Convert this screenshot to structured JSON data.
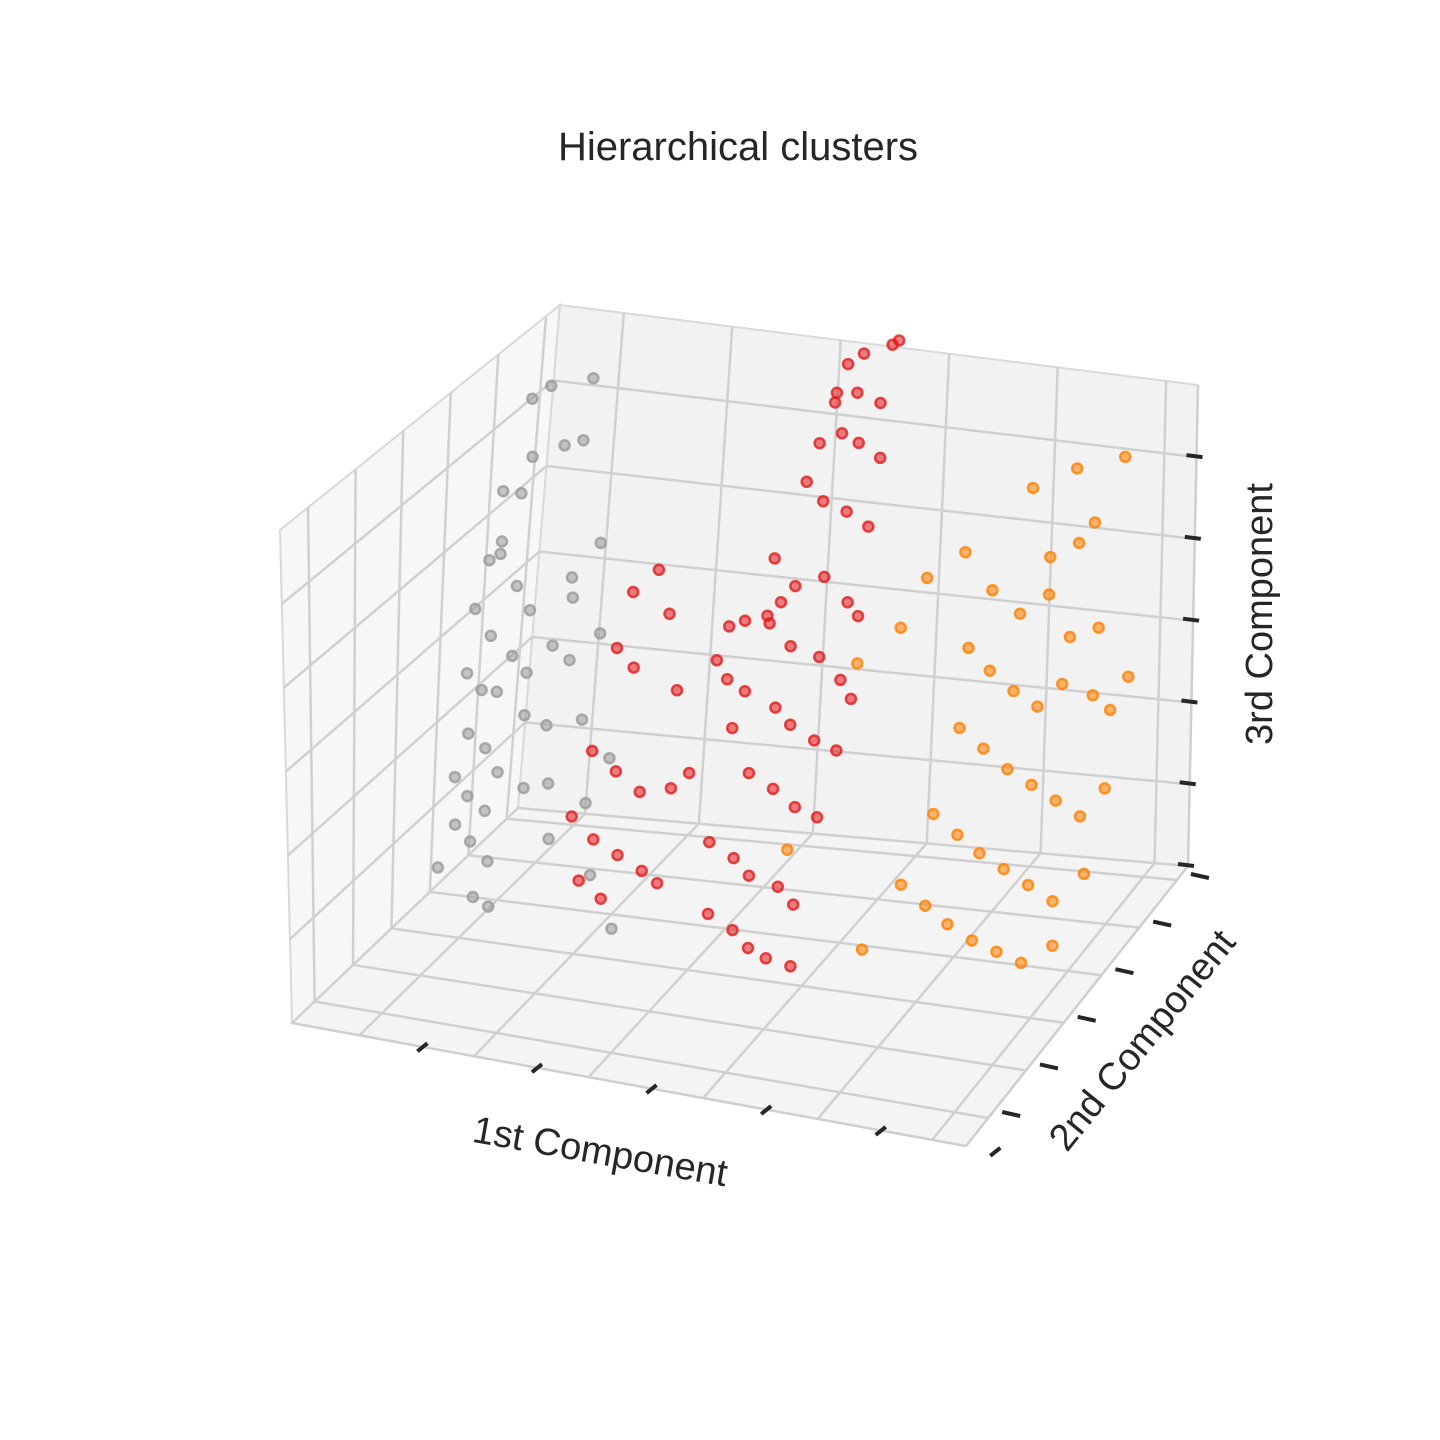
{
  "chart_data": {
    "type": "scatter3d",
    "title": "Hierarchical clusters",
    "xlabel": "1st Component",
    "ylabel": "2nd Component",
    "zlabel": "3rd Component",
    "xlim": [
      0,
      10
    ],
    "ylim": [
      0,
      10
    ],
    "zlim": [
      0,
      10
    ],
    "grid": true,
    "series": [
      {
        "color": "#999999",
        "points": [
          [
            0.4,
            8.2,
            9.0
          ],
          [
            0.6,
            8.4,
            9.2
          ],
          [
            1.2,
            8.5,
            9.4
          ],
          [
            0.5,
            8.1,
            7.9
          ],
          [
            0.9,
            8.3,
            8.1
          ],
          [
            1.3,
            8.0,
            8.4
          ],
          [
            0.2,
            7.8,
            7.3
          ],
          [
            0.4,
            8.0,
            7.2
          ],
          [
            0.3,
            7.6,
            6.4
          ],
          [
            0.2,
            7.4,
            6.1
          ],
          [
            0.4,
            7.3,
            6.3
          ],
          [
            0.6,
            7.5,
            5.6
          ],
          [
            0.1,
            7.2,
            5.2
          ],
          [
            1.0,
            7.0,
            5.4
          ],
          [
            1.6,
            7.1,
            5.7
          ],
          [
            2.0,
            7.2,
            5.0
          ],
          [
            1.4,
            6.9,
            4.8
          ],
          [
            1.7,
            6.8,
            4.6
          ],
          [
            0.8,
            6.9,
            4.5
          ],
          [
            1.1,
            6.7,
            4.3
          ],
          [
            0.1,
            7.0,
            4.0
          ],
          [
            0.4,
            6.8,
            3.8
          ],
          [
            0.7,
            6.6,
            3.9
          ],
          [
            1.2,
            6.4,
            3.6
          ],
          [
            1.5,
            6.5,
            3.4
          ],
          [
            2.1,
            6.3,
            3.7
          ],
          [
            0.3,
            6.6,
            3.0
          ],
          [
            0.6,
            6.5,
            2.8
          ],
          [
            0.9,
            6.2,
            2.5
          ],
          [
            0.2,
            6.4,
            2.2
          ],
          [
            0.5,
            6.1,
            2.0
          ],
          [
            0.8,
            6.0,
            1.8
          ],
          [
            0.4,
            5.9,
            1.5
          ],
          [
            0.7,
            5.7,
            1.3
          ],
          [
            1.0,
            5.6,
            1.0
          ],
          [
            0.3,
            5.5,
            0.8
          ],
          [
            1.4,
            5.9,
            2.4
          ],
          [
            1.8,
            5.8,
            2.6
          ],
          [
            2.3,
            6.0,
            2.2
          ],
          [
            2.6,
            6.1,
            3.1
          ],
          [
            1.9,
            5.6,
            1.6
          ],
          [
            0.9,
            5.3,
            0.4
          ],
          [
            1.1,
            5.4,
            0.2
          ],
          [
            2.8,
            4.8,
            1.4
          ],
          [
            3.2,
            4.6,
            0.5
          ],
          [
            0.5,
            6.8,
            4.9
          ],
          [
            1.5,
            7.3,
            6.0
          ],
          [
            1.8,
            7.6,
            6.6
          ]
        ]
      },
      {
        "color": "#e41a1c",
        "points": [
          [
            5.2,
            8.3,
            10.4
          ],
          [
            5.4,
            8.4,
            10.6
          ],
          [
            5.8,
            8.5,
            10.8
          ],
          [
            5.9,
            8.5,
            10.9
          ],
          [
            5.1,
            8.1,
            9.7
          ],
          [
            5.4,
            8.2,
            9.9
          ],
          [
            5.8,
            8.1,
            9.8
          ],
          [
            5.0,
            7.8,
            9.0
          ],
          [
            5.3,
            7.9,
            9.2
          ],
          [
            5.6,
            7.8,
            9.1
          ],
          [
            5.9,
            7.9,
            8.8
          ],
          [
            4.9,
            7.6,
            8.3
          ],
          [
            5.2,
            7.5,
            8.0
          ],
          [
            5.6,
            7.4,
            7.9
          ],
          [
            5.9,
            7.5,
            7.6
          ],
          [
            4.6,
            7.2,
            6.9
          ],
          [
            5.0,
            7.0,
            6.5
          ],
          [
            5.4,
            7.1,
            6.7
          ],
          [
            5.8,
            7.0,
            6.3
          ],
          [
            6.0,
            6.9,
            6.1
          ],
          [
            4.7,
            6.8,
            5.8
          ],
          [
            5.1,
            6.6,
            5.5
          ],
          [
            5.5,
            6.7,
            5.3
          ],
          [
            5.9,
            6.5,
            5.0
          ],
          [
            6.1,
            6.4,
            4.7
          ],
          [
            4.5,
            6.4,
            4.6
          ],
          [
            5.0,
            6.3,
            4.4
          ],
          [
            5.3,
            6.1,
            4.2
          ],
          [
            5.7,
            6.0,
            4.0
          ],
          [
            6.0,
            6.1,
            3.8
          ],
          [
            4.8,
            5.8,
            3.3
          ],
          [
            5.2,
            5.7,
            3.1
          ],
          [
            5.6,
            5.5,
            2.9
          ],
          [
            5.9,
            5.6,
            2.7
          ],
          [
            4.4,
            5.3,
            2.1
          ],
          [
            4.8,
            5.2,
            1.9
          ],
          [
            5.1,
            5.0,
            1.7
          ],
          [
            5.5,
            5.1,
            1.5
          ],
          [
            5.8,
            4.9,
            1.3
          ],
          [
            4.6,
            4.7,
            1.0
          ],
          [
            5.0,
            4.6,
            0.8
          ],
          [
            5.3,
            4.4,
            0.6
          ],
          [
            5.6,
            4.3,
            0.5
          ],
          [
            5.9,
            4.5,
            0.3
          ],
          [
            2.4,
            7.4,
            5.8
          ],
          [
            2.7,
            7.6,
            6.2
          ],
          [
            3.0,
            7.3,
            5.5
          ],
          [
            2.3,
            7.1,
            4.8
          ],
          [
            2.6,
            7.0,
            4.5
          ],
          [
            3.3,
            6.9,
            4.2
          ],
          [
            2.2,
            6.5,
            3.0
          ],
          [
            2.6,
            6.4,
            2.7
          ],
          [
            3.0,
            6.3,
            2.4
          ],
          [
            3.5,
            6.2,
            2.6
          ],
          [
            3.8,
            6.1,
            3.0
          ],
          [
            2.1,
            6.0,
            1.9
          ],
          [
            2.5,
            5.8,
            1.6
          ],
          [
            2.9,
            5.7,
            1.4
          ],
          [
            3.3,
            5.6,
            1.2
          ],
          [
            2.4,
            5.5,
            0.9
          ],
          [
            2.8,
            5.3,
            0.7
          ],
          [
            3.6,
            5.4,
            1.1
          ],
          [
            4.2,
            6.5,
            5.8
          ],
          [
            4.4,
            6.6,
            5.9
          ],
          [
            4.7,
            6.7,
            6.0
          ],
          [
            4.1,
            6.3,
            5.2
          ],
          [
            4.3,
            6.2,
            4.9
          ],
          [
            4.5,
            5.9,
            4.1
          ],
          [
            5.2,
            7.9,
            10.0
          ],
          [
            4.9,
            6.7,
            6.3
          ]
        ]
      },
      {
        "color": "#ff7f00",
        "points": [
          [
            8.0,
            8.6,
            8.2
          ],
          [
            8.6,
            8.8,
            8.6
          ],
          [
            9.3,
            8.9,
            8.9
          ],
          [
            9.0,
            8.5,
            7.7
          ],
          [
            8.4,
            8.3,
            7.0
          ],
          [
            8.8,
            8.4,
            7.3
          ],
          [
            7.6,
            8.1,
            6.3
          ],
          [
            8.1,
            7.9,
            6.0
          ],
          [
            8.5,
            8.0,
            6.4
          ],
          [
            8.9,
            7.8,
            5.7
          ],
          [
            9.3,
            7.9,
            5.9
          ],
          [
            7.4,
            7.7,
            5.3
          ],
          [
            7.8,
            7.5,
            5.0
          ],
          [
            8.2,
            7.4,
            4.7
          ],
          [
            8.6,
            7.3,
            4.5
          ],
          [
            8.9,
            7.5,
            4.9
          ],
          [
            9.4,
            7.4,
            4.8
          ],
          [
            9.7,
            7.3,
            4.6
          ],
          [
            9.9,
            7.5,
            5.2
          ],
          [
            7.5,
            7.1,
            4.0
          ],
          [
            7.9,
            7.0,
            3.7
          ],
          [
            8.3,
            6.9,
            3.4
          ],
          [
            8.7,
            6.8,
            3.2
          ],
          [
            9.1,
            6.7,
            3.0
          ],
          [
            9.5,
            6.6,
            2.8
          ],
          [
            9.8,
            6.8,
            3.3
          ],
          [
            7.3,
            6.6,
            2.5
          ],
          [
            7.7,
            6.5,
            2.2
          ],
          [
            8.1,
            6.3,
            2.0
          ],
          [
            8.5,
            6.2,
            1.8
          ],
          [
            8.9,
            6.1,
            1.6
          ],
          [
            9.3,
            6.0,
            1.4
          ],
          [
            9.7,
            6.2,
            1.9
          ],
          [
            7.0,
            6.1,
            1.3
          ],
          [
            7.4,
            6.0,
            1.0
          ],
          [
            7.8,
            5.8,
            0.8
          ],
          [
            8.2,
            5.7,
            0.6
          ],
          [
            8.6,
            5.6,
            0.5
          ],
          [
            9.0,
            5.5,
            0.4
          ],
          [
            9.4,
            5.7,
            0.7
          ],
          [
            6.6,
            5.6,
            0.2
          ],
          [
            5.6,
            5.2,
            2.2
          ],
          [
            5.9,
            7.2,
            5.0
          ],
          [
            6.4,
            7.6,
            5.6
          ],
          [
            7.1,
            8.3,
            6.9
          ],
          [
            6.6,
            8.1,
            6.4
          ]
        ]
      }
    ]
  }
}
